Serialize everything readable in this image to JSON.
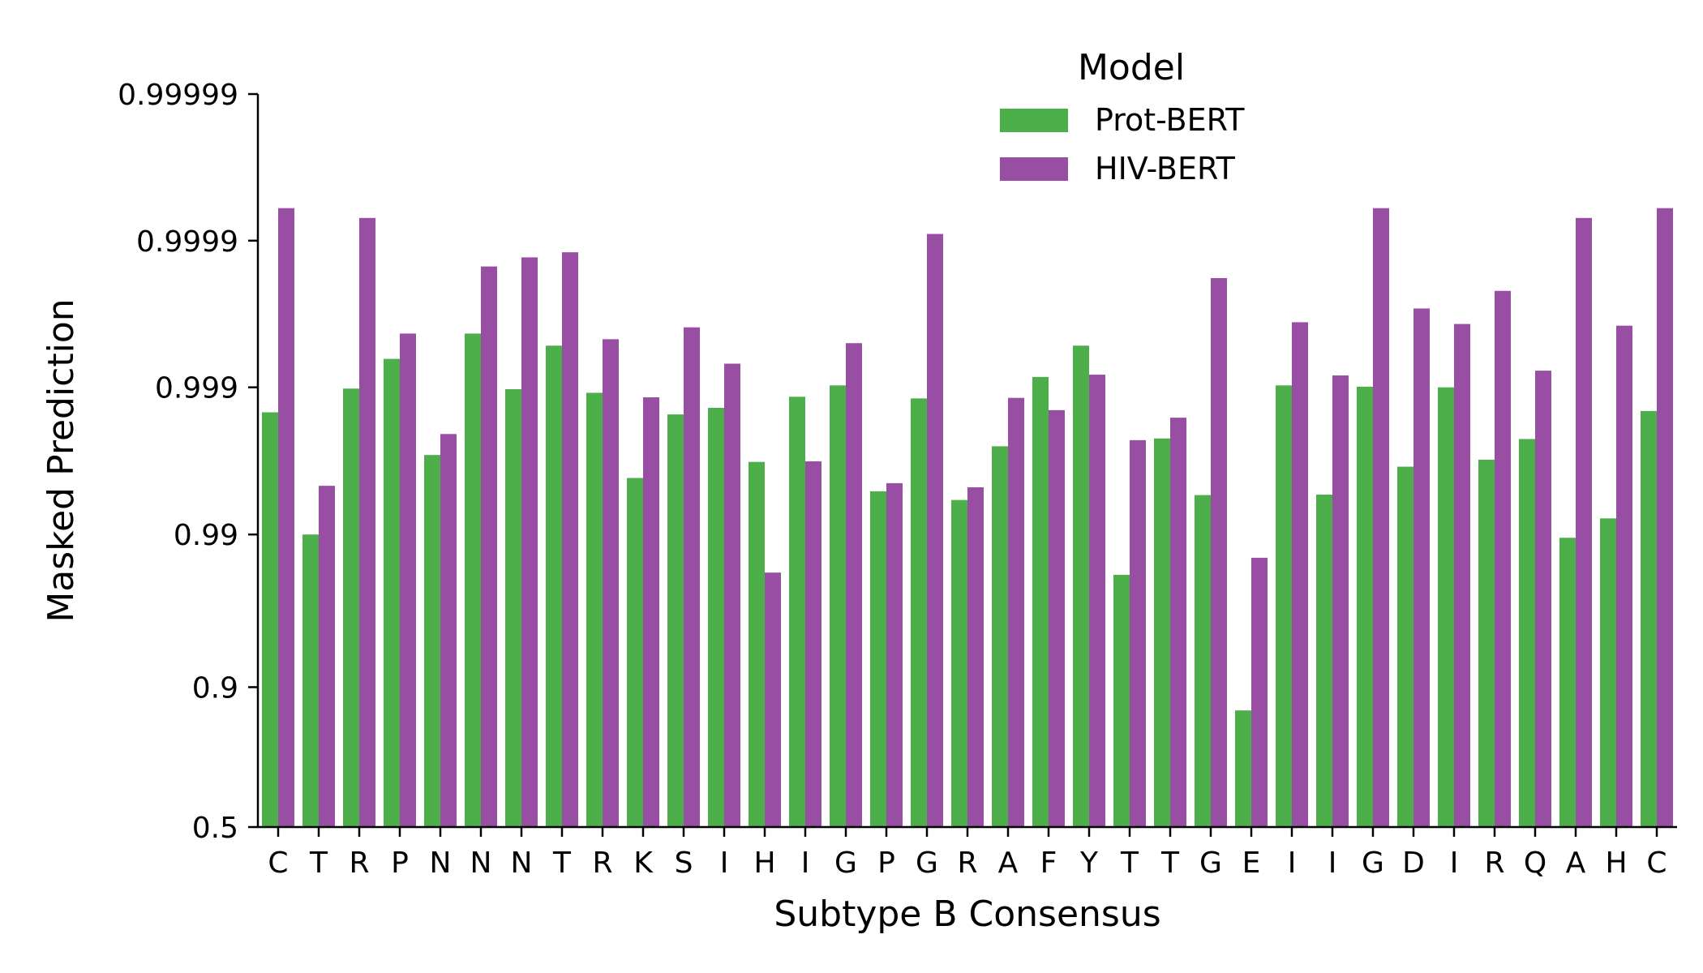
{
  "chart_data": {
    "type": "bar",
    "title": "",
    "xlabel": "Subtype B Consensus",
    "ylabel": "Masked Prediction",
    "yscale": "logit",
    "ylim": [
      0.5,
      0.99999
    ],
    "yticks": [
      0.5,
      0.9,
      0.99,
      0.999,
      0.9999,
      0.99999
    ],
    "ytick_labels": [
      "0.5",
      "0.9",
      "0.99",
      "0.999",
      "0.9999",
      "0.99999"
    ],
    "categories": [
      "C",
      "T",
      "R",
      "P",
      "N",
      "N",
      "N",
      "T",
      "R",
      "K",
      "S",
      "I",
      "H",
      "I",
      "G",
      "P",
      "G",
      "R",
      "A",
      "F",
      "Y",
      "T",
      "T",
      "G",
      "E",
      "I",
      "I",
      "G",
      "D",
      "I",
      "R",
      "Q",
      "A",
      "H",
      "C"
    ],
    "legend": {
      "title": "Model",
      "position": "top-center"
    },
    "series": [
      {
        "name": "Prot-BERT",
        "color": "#4daf4a",
        "values": [
          0.99852,
          0.99,
          0.99898,
          0.99936,
          0.99711,
          0.99957,
          0.99897,
          0.99948,
          0.99891,
          0.99586,
          0.99847,
          0.99862,
          0.99678,
          0.99884,
          0.99903,
          0.9949,
          0.99881,
          0.99416,
          0.99748,
          0.99915,
          0.99948,
          0.98132,
          0.99777,
          0.99459,
          0.862,
          0.99903,
          0.99463,
          0.99901,
          0.99653,
          0.999,
          0.99689,
          0.99775,
          0.98948,
          0.99222,
          0.99855
        ]
      },
      {
        "name": "HIV-BERT",
        "color": "#984ea3",
        "values": [
          0.99994,
          0.99532,
          0.99993,
          0.99957,
          0.99792,
          0.99985,
          0.99987,
          0.99988,
          0.99953,
          0.99883,
          0.99961,
          0.99931,
          0.98195,
          0.99681,
          0.9995,
          0.99551,
          0.99991,
          0.99521,
          0.99882,
          0.99857,
          0.99918,
          0.99771,
          0.99839,
          0.99982,
          0.98565,
          0.99964,
          0.99917,
          0.99994,
          0.99971,
          0.99963,
          0.99978,
          0.99923,
          0.99993,
          0.99962,
          0.99994
        ]
      }
    ]
  }
}
